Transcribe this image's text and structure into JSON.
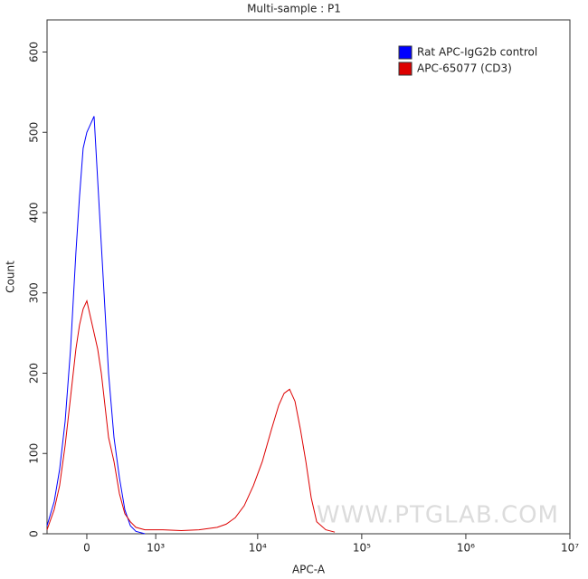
{
  "chart_data": {
    "type": "histogram-overlay",
    "title": "Multi-sample : P1",
    "x_label": "APC-A",
    "y_label": "Count",
    "x_scale": "biex",
    "xlim": [
      -456,
      10000000
    ],
    "xticks": [
      0,
      {
        "value": 1000,
        "label": "10³"
      },
      {
        "value": 10000,
        "label": "10⁴"
      },
      {
        "value": 100000,
        "label": "10⁵"
      },
      {
        "value": 1000000,
        "label": "10⁶"
      },
      {
        "value": 10000000,
        "label": "10⁷"
      }
    ],
    "ylim": [
      0,
      640
    ],
    "yticks": [
      0,
      100,
      200,
      300,
      400,
      500,
      600
    ],
    "legend": "top-right",
    "watermark": "WWW.PTGLAB.COM",
    "series": [
      {
        "name": "Rat APC-IgG2b control",
        "color": "#0000ff",
        "x": [
          -456,
          -359,
          -292,
          -228,
          -168,
          -111,
          -74,
          -37,
          0,
          37,
          74,
          111,
          149,
          188,
          228,
          292,
          359,
          431,
          511,
          599,
          763
        ],
        "values": [
          10,
          40,
          80,
          140,
          230,
          350,
          420,
          480,
          500,
          510,
          520,
          440,
          360,
          280,
          200,
          120,
          70,
          30,
          10,
          3,
          0
        ]
      },
      {
        "name": "APC-65077  (CD3)",
        "color": "#dd0000",
        "x": [
          -456,
          -359,
          -292,
          -228,
          -168,
          -111,
          -74,
          -37,
          0,
          37,
          74,
          111,
          149,
          188,
          228,
          292,
          359,
          431,
          511,
          599,
          763,
          1186,
          1819,
          2714,
          4073,
          4977,
          6083,
          7435,
          9090,
          11101,
          13568,
          15922,
          17955,
          20245,
          22850,
          25752,
          29042,
          32721,
          36926,
          45106,
          55069
        ],
        "values": [
          5,
          30,
          60,
          110,
          170,
          230,
          260,
          280,
          290,
          270,
          250,
          230,
          200,
          160,
          120,
          90,
          50,
          25,
          15,
          8,
          5,
          5,
          4,
          5,
          8,
          12,
          20,
          35,
          60,
          90,
          130,
          160,
          175,
          180,
          165,
          130,
          90,
          45,
          15,
          5,
          2
        ]
      }
    ]
  }
}
